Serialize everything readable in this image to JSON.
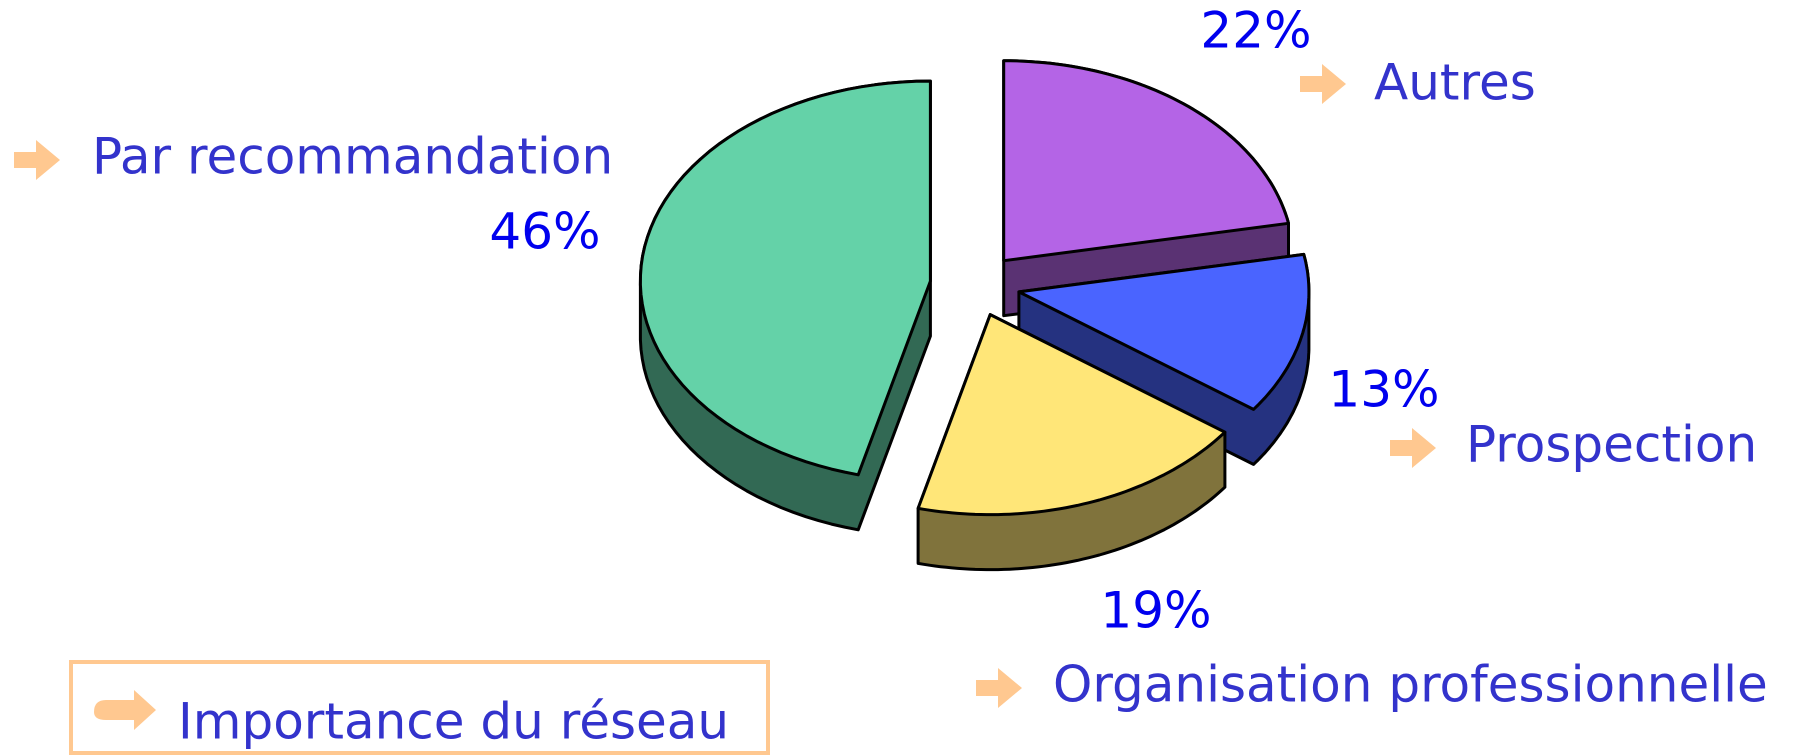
{
  "chart_data": {
    "type": "pie",
    "categories": [
      "Autres",
      "Prospection",
      "Organisation professionnelle",
      "Par recommandation"
    ],
    "values": [
      22,
      13,
      19,
      46
    ],
    "value_labels": [
      "22%",
      "13%",
      "19%",
      "46%"
    ],
    "colors": [
      "#b464e6",
      "#4a64ff",
      "#ffe678",
      "#64d2a8"
    ],
    "annotation": "Importance du réseau"
  }
}
